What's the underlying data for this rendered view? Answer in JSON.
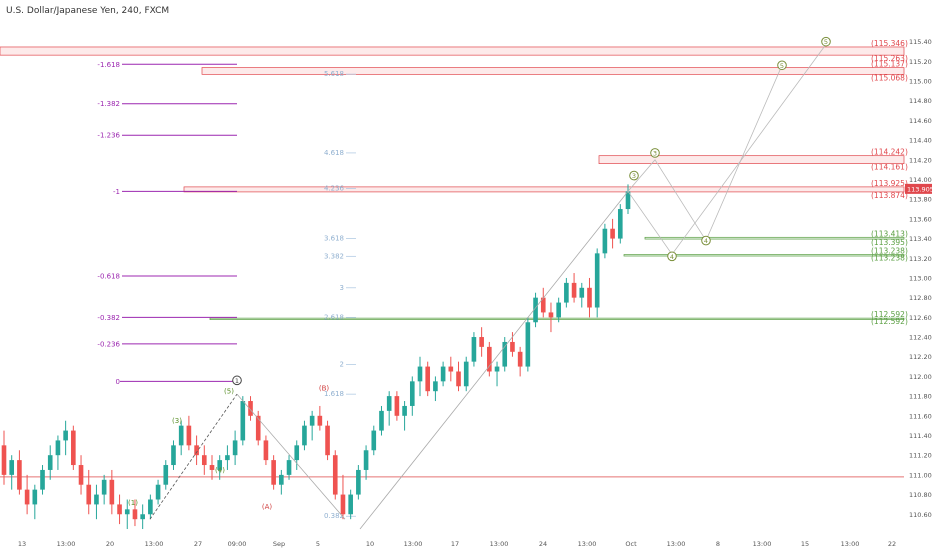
{
  "header": {
    "title": "U.S. Dollar/Japanese Yen, 240, FXCM"
  },
  "chart_data": {
    "type": "candlestick",
    "title": "U.S. Dollar/Japanese Yen, 240, FXCM",
    "ylim": [
      110.43,
      115.62
    ],
    "y_ticks": [
      "115.400",
      "115.200",
      "115.000",
      "114.800",
      "114.600",
      "114.400",
      "114.200",
      "114.000",
      "113.800",
      "113.600",
      "113.400",
      "113.200",
      "113.000",
      "112.800",
      "112.600",
      "112.400",
      "112.200",
      "112.000",
      "111.800",
      "111.600",
      "111.400",
      "111.200",
      "111.000",
      "110.800",
      "110.600"
    ],
    "x_ticks": [
      "13",
      "13:00",
      "20",
      "13:00",
      "27",
      "09:00",
      "Sep",
      "5",
      "10",
      "13:00",
      "17",
      "13:00",
      "24",
      "13:00",
      "Oct",
      "13:00",
      "8",
      "13:00",
      "15",
      "13:00",
      "22"
    ],
    "last_price": "113.905",
    "last_price_color": "#e0474c",
    "up_color": "#26a69a",
    "down_color": "#ef5350",
    "candles": [
      [
        111.3,
        111.45,
        110.9,
        111.0
      ],
      [
        111.0,
        111.2,
        110.85,
        111.15
      ],
      [
        111.15,
        111.25,
        110.8,
        110.85
      ],
      [
        110.85,
        111.0,
        110.6,
        110.7
      ],
      [
        110.7,
        110.9,
        110.55,
        110.85
      ],
      [
        110.85,
        111.1,
        110.8,
        111.05
      ],
      [
        111.05,
        111.3,
        110.95,
        111.2
      ],
      [
        111.2,
        111.4,
        111.05,
        111.35
      ],
      [
        111.35,
        111.55,
        111.2,
        111.45
      ],
      [
        111.45,
        111.5,
        111.05,
        111.1
      ],
      [
        111.1,
        111.2,
        110.8,
        110.9
      ],
      [
        110.9,
        111.05,
        110.6,
        110.7
      ],
      [
        110.7,
        110.9,
        110.55,
        110.8
      ],
      [
        110.8,
        111.0,
        110.7,
        110.95
      ],
      [
        110.95,
        111.05,
        110.6,
        110.7
      ],
      [
        110.7,
        110.8,
        110.5,
        110.6
      ],
      [
        110.6,
        110.75,
        110.45,
        110.65
      ],
      [
        110.65,
        110.75,
        110.48,
        110.55
      ],
      [
        110.55,
        110.7,
        110.45,
        110.6
      ],
      [
        110.6,
        110.8,
        110.55,
        110.75
      ],
      [
        110.75,
        110.95,
        110.7,
        110.9
      ],
      [
        110.9,
        111.15,
        110.85,
        111.1
      ],
      [
        111.1,
        111.35,
        111.05,
        111.3
      ],
      [
        111.3,
        111.55,
        111.2,
        111.5
      ],
      [
        111.5,
        111.6,
        111.25,
        111.3
      ],
      [
        111.3,
        111.4,
        111.1,
        111.2
      ],
      [
        111.2,
        111.3,
        111.0,
        111.1
      ],
      [
        111.1,
        111.2,
        110.95,
        111.05
      ],
      [
        111.05,
        111.2,
        110.95,
        111.15
      ],
      [
        111.15,
        111.3,
        111.05,
        111.2
      ],
      [
        111.2,
        111.45,
        111.1,
        111.35
      ],
      [
        111.35,
        111.8,
        111.3,
        111.75
      ],
      [
        111.75,
        111.8,
        111.55,
        111.6
      ],
      [
        111.6,
        111.65,
        111.3,
        111.35
      ],
      [
        111.35,
        111.4,
        111.1,
        111.15
      ],
      [
        111.15,
        111.2,
        110.85,
        110.9
      ],
      [
        110.9,
        111.05,
        110.8,
        111.0
      ],
      [
        111.0,
        111.2,
        110.95,
        111.15
      ],
      [
        111.15,
        111.35,
        111.05,
        111.3
      ],
      [
        111.3,
        111.55,
        111.25,
        111.5
      ],
      [
        111.5,
        111.65,
        111.35,
        111.6
      ],
      [
        111.6,
        111.7,
        111.45,
        111.5
      ],
      [
        111.5,
        111.55,
        111.15,
        111.2
      ],
      [
        111.2,
        111.25,
        110.75,
        110.8
      ],
      [
        110.8,
        111.0,
        110.55,
        110.6
      ],
      [
        110.6,
        110.85,
        110.55,
        110.8
      ],
      [
        110.8,
        111.1,
        110.75,
        111.05
      ],
      [
        111.05,
        111.3,
        110.95,
        111.25
      ],
      [
        111.25,
        111.5,
        111.2,
        111.45
      ],
      [
        111.45,
        111.7,
        111.4,
        111.65
      ],
      [
        111.65,
        111.85,
        111.5,
        111.8
      ],
      [
        111.8,
        111.85,
        111.55,
        111.6
      ],
      [
        111.6,
        111.75,
        111.45,
        111.7
      ],
      [
        111.7,
        112.0,
        111.6,
        111.95
      ],
      [
        111.95,
        112.2,
        111.8,
        112.1
      ],
      [
        112.1,
        112.15,
        111.8,
        111.85
      ],
      [
        111.85,
        112.0,
        111.75,
        111.95
      ],
      [
        111.95,
        112.15,
        111.9,
        112.1
      ],
      [
        112.1,
        112.2,
        111.95,
        112.05
      ],
      [
        112.05,
        112.15,
        111.85,
        111.9
      ],
      [
        111.9,
        112.2,
        111.85,
        112.15
      ],
      [
        112.15,
        112.45,
        112.1,
        112.4
      ],
      [
        112.4,
        112.5,
        112.2,
        112.3
      ],
      [
        112.3,
        112.35,
        112.0,
        112.05
      ],
      [
        112.05,
        112.15,
        111.9,
        112.1
      ],
      [
        112.1,
        112.4,
        112.05,
        112.35
      ],
      [
        112.35,
        112.45,
        112.2,
        112.25
      ],
      [
        112.25,
        112.3,
        112.0,
        112.1
      ],
      [
        112.1,
        112.6,
        112.05,
        112.55
      ],
      [
        112.55,
        112.85,
        112.5,
        112.8
      ],
      [
        112.8,
        112.9,
        112.6,
        112.65
      ],
      [
        112.65,
        112.75,
        112.45,
        112.6
      ],
      [
        112.6,
        112.8,
        112.55,
        112.75
      ],
      [
        112.75,
        113.0,
        112.7,
        112.95
      ],
      [
        112.95,
        113.05,
        112.75,
        112.8
      ],
      [
        112.8,
        112.95,
        112.7,
        112.9
      ],
      [
        112.9,
        113.0,
        112.6,
        112.7
      ],
      [
        112.7,
        113.3,
        112.6,
        113.25
      ],
      [
        113.25,
        113.55,
        113.2,
        113.5
      ],
      [
        113.5,
        113.6,
        113.3,
        113.4
      ],
      [
        113.4,
        113.75,
        113.35,
        113.7
      ],
      [
        113.7,
        113.95,
        113.65,
        113.88
      ]
    ],
    "fib_left_labels": [
      "-1.618",
      "-1.382",
      "-1.236",
      "-1",
      "-0.618",
      "-0.382",
      "-0.236",
      "0"
    ],
    "fib_left_levels": [
      115.17,
      114.77,
      114.45,
      113.88,
      113.02,
      112.6,
      112.33,
      111.95
    ],
    "fib_mid_labels": [
      "5.618",
      "4.618",
      "4.236",
      "3.618",
      "3.382",
      "3",
      "2.618",
      "2",
      "1.618",
      "0.382"
    ],
    "fib_mid_levels": [
      115.07,
      114.27,
      113.91,
      113.4,
      113.22,
      112.9,
      112.6,
      112.12,
      111.82,
      110.58
    ],
    "price_zones": [
      {
        "top": 115.346,
        "bottom": 115.263,
        "labels": [
          "(115.346)",
          "(115.263)"
        ],
        "color": "#e0474c"
      },
      {
        "top": 115.137,
        "bottom": 115.068,
        "labels": [
          "(115.137)",
          "(115.068)"
        ],
        "color": "#e0474c"
      },
      {
        "top": 114.242,
        "bottom": 114.161,
        "labels": [
          "(114.242)",
          "(114.161)"
        ],
        "color": "#e0474c"
      },
      {
        "top": 113.925,
        "bottom": 113.874,
        "labels": [
          "(113.925)",
          "(113.874)"
        ],
        "color": "#e0474c"
      },
      {
        "top": 113.413,
        "bottom": 113.395,
        "labels": [
          "(113.413)",
          "(113.395)"
        ],
        "color": "#5a9e42"
      },
      {
        "top": 113.238,
        "bottom": 113.238,
        "labels": [
          "(113.238)",
          "(113.238)"
        ],
        "color": "#5a9e42"
      },
      {
        "top": 112.592,
        "bottom": 112.592,
        "labels": [
          "(112.592)",
          "(112.592)"
        ],
        "color": "#5a9e42"
      }
    ],
    "horizontal_line": 110.98,
    "wave_labels": [
      {
        "text": "(1)",
        "color": "#5a8f29",
        "circle": false
      },
      {
        "text": "(3)",
        "color": "#5a8f29",
        "circle": false
      },
      {
        "text": "(4)",
        "color": "#5a8f29",
        "circle": false
      },
      {
        "text": "(5)",
        "color": "#5a8f29",
        "circle": false
      },
      {
        "text": "1",
        "color": "#444444",
        "circle": true
      },
      {
        "text": "(A)",
        "color": "#d04040",
        "circle": false
      },
      {
        "text": "(B)",
        "color": "#d04040",
        "circle": false
      },
      {
        "text": "3",
        "color": "#7a8f3a",
        "circle": true
      },
      {
        "text": "3",
        "color": "#7a8f3a",
        "circle": true
      },
      {
        "text": "4",
        "color": "#7a8f3a",
        "circle": true
      },
      {
        "text": "4",
        "color": "#7a8f3a",
        "circle": true
      },
      {
        "text": "5",
        "color": "#7a8f3a",
        "circle": true
      },
      {
        "text": "5",
        "color": "#7a8f3a",
        "circle": true
      }
    ]
  }
}
